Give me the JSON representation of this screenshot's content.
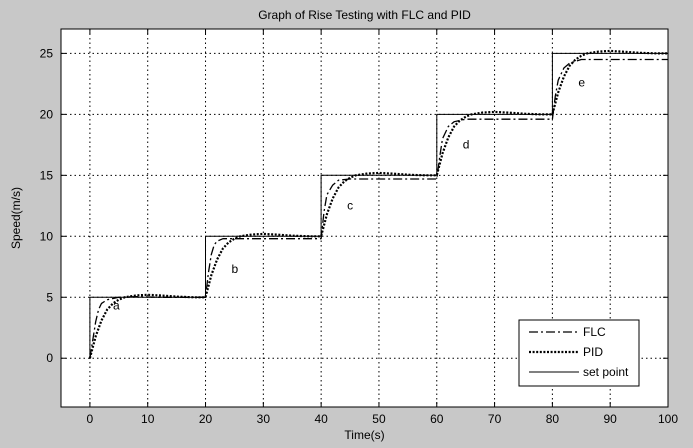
{
  "chart_data": {
    "type": "line",
    "title": "Graph of Rise Testing with FLC and PID",
    "xlabel": "Time(s)",
    "ylabel": "Speed(m/s)",
    "xlim": [
      -5,
      100
    ],
    "ylim": [
      -4,
      27
    ],
    "x_ticks": [
      0,
      10,
      20,
      30,
      40,
      50,
      60,
      70,
      80,
      90,
      100
    ],
    "y_ticks": [
      0,
      5,
      10,
      15,
      20,
      25
    ],
    "grid": true,
    "legend_position": "bottom-right",
    "series": [
      {
        "name": "FLC",
        "style": "dash-dot",
        "x": [
          0,
          0.5,
          1,
          1.5,
          2,
          3,
          5,
          8,
          12,
          16,
          19,
          20,
          20.5,
          21,
          21.5,
          22,
          23,
          25,
          28,
          32,
          36,
          39,
          40,
          40.5,
          41,
          42,
          43,
          45,
          48,
          52,
          56,
          59,
          60,
          60.5,
          61,
          62,
          63,
          65,
          68,
          72,
          76,
          79,
          80,
          80.5,
          81,
          82,
          83,
          85,
          88,
          92,
          96,
          100
        ],
        "y": [
          0,
          1.5,
          3,
          4,
          4.5,
          4.8,
          5.0,
          5.05,
          5.0,
          5.0,
          5.0,
          5.0,
          7,
          8.5,
          9.3,
          9.6,
          9.8,
          9.8,
          9.8,
          9.8,
          9.8,
          9.8,
          9.8,
          12,
          13.4,
          14.2,
          14.6,
          14.7,
          14.7,
          14.7,
          14.7,
          14.7,
          14.7,
          16.5,
          18,
          19,
          19.4,
          19.6,
          19.6,
          19.6,
          19.6,
          19.6,
          19.6,
          21.5,
          22.8,
          23.8,
          24.2,
          24.5,
          24.5,
          24.5,
          24.5,
          24.5
        ]
      },
      {
        "name": "PID",
        "style": "dotted",
        "x": [
          0,
          1,
          2,
          3,
          4,
          5,
          6,
          8,
          10,
          12,
          15,
          18,
          20,
          21,
          22,
          23,
          24,
          25,
          26,
          28,
          30,
          32,
          35,
          38,
          40,
          41,
          42,
          43,
          44,
          45,
          46,
          48,
          50,
          52,
          55,
          58,
          60,
          61,
          62,
          63,
          64,
          65,
          66,
          68,
          70,
          72,
          75,
          78,
          80,
          81,
          82,
          83,
          84,
          85,
          86,
          88,
          90,
          92,
          95,
          98,
          100
        ],
        "y": [
          0,
          1.8,
          3.1,
          4.0,
          4.5,
          4.8,
          5.0,
          5.15,
          5.2,
          5.15,
          5.05,
          5.0,
          5.0,
          6.8,
          8.1,
          9.0,
          9.5,
          9.8,
          10.0,
          10.15,
          10.2,
          10.15,
          10.05,
          10.0,
          10.0,
          11.8,
          13.1,
          14.0,
          14.5,
          14.8,
          15.0,
          15.15,
          15.2,
          15.15,
          15.05,
          15.0,
          15.0,
          16.8,
          18.1,
          19.0,
          19.5,
          19.8,
          20.0,
          20.15,
          20.2,
          20.15,
          20.05,
          20.0,
          20.0,
          21.8,
          23.1,
          24.0,
          24.5,
          24.8,
          25.0,
          25.15,
          25.2,
          25.15,
          25.05,
          25.0,
          25.0
        ]
      },
      {
        "name": "set point",
        "style": "solid",
        "x": [
          0,
          0,
          20,
          20,
          40,
          40,
          60,
          60,
          80,
          80,
          100
        ],
        "y": [
          0,
          5,
          5,
          10,
          10,
          15,
          15,
          20,
          20,
          25,
          25
        ]
      }
    ],
    "annotations": [
      {
        "text": "a",
        "x": 4,
        "y": 4.0
      },
      {
        "text": "b",
        "x": 24.5,
        "y": 7.0
      },
      {
        "text": "c",
        "x": 44.5,
        "y": 12.2
      },
      {
        "text": "d",
        "x": 64.5,
        "y": 17.2
      },
      {
        "text": "e",
        "x": 84.5,
        "y": 22.3
      }
    ]
  }
}
